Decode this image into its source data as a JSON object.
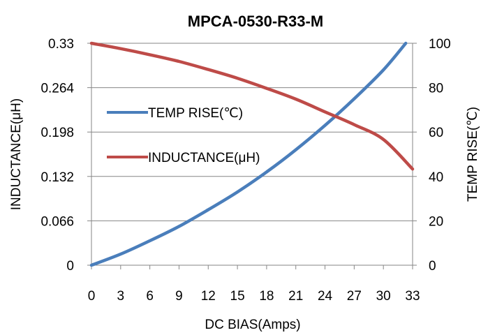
{
  "chart_data": {
    "type": "line",
    "title": "MPCA-0530-R33-M",
    "xlabel": "DC  BIAS(Amps)",
    "ylabel_left": "INDUCTANCE(μH)",
    "ylabel_right": "TEMP RISE(℃)",
    "xlim": [
      0,
      33
    ],
    "ylim_left": [
      0,
      0.33
    ],
    "ylim_right": [
      0,
      100
    ],
    "x_ticks": [
      "0",
      "3",
      "6",
      "9",
      "12",
      "15",
      "18",
      "21",
      "24",
      "27",
      "30",
      "33"
    ],
    "y_left_ticks": [
      "0",
      "0.066",
      "0.132",
      "0.198",
      "0.264",
      "0.33"
    ],
    "y_right_ticks": [
      "0",
      "20",
      "40",
      "60",
      "80",
      "100"
    ],
    "grid": "horizontal",
    "legend_position": "upper-left inside",
    "series": [
      {
        "name": "TEMP RISE(℃)",
        "axis": "right",
        "color": "#4a7ebb",
        "x": [
          0,
          3,
          6,
          9,
          12,
          15,
          18,
          21,
          24,
          27,
          30,
          32.3
        ],
        "values": [
          0,
          5,
          11,
          17.5,
          25,
          33,
          42,
          52,
          63,
          75,
          88,
          100
        ]
      },
      {
        "name": "INDUCTANCE(μH)",
        "axis": "left",
        "color": "#be4b48",
        "x": [
          0,
          3,
          6,
          9,
          12,
          15,
          18,
          21,
          24,
          27,
          30,
          33
        ],
        "values": [
          0.33,
          0.322,
          0.313,
          0.303,
          0.291,
          0.278,
          0.263,
          0.247,
          0.228,
          0.209,
          0.187,
          0.143
        ]
      }
    ]
  }
}
